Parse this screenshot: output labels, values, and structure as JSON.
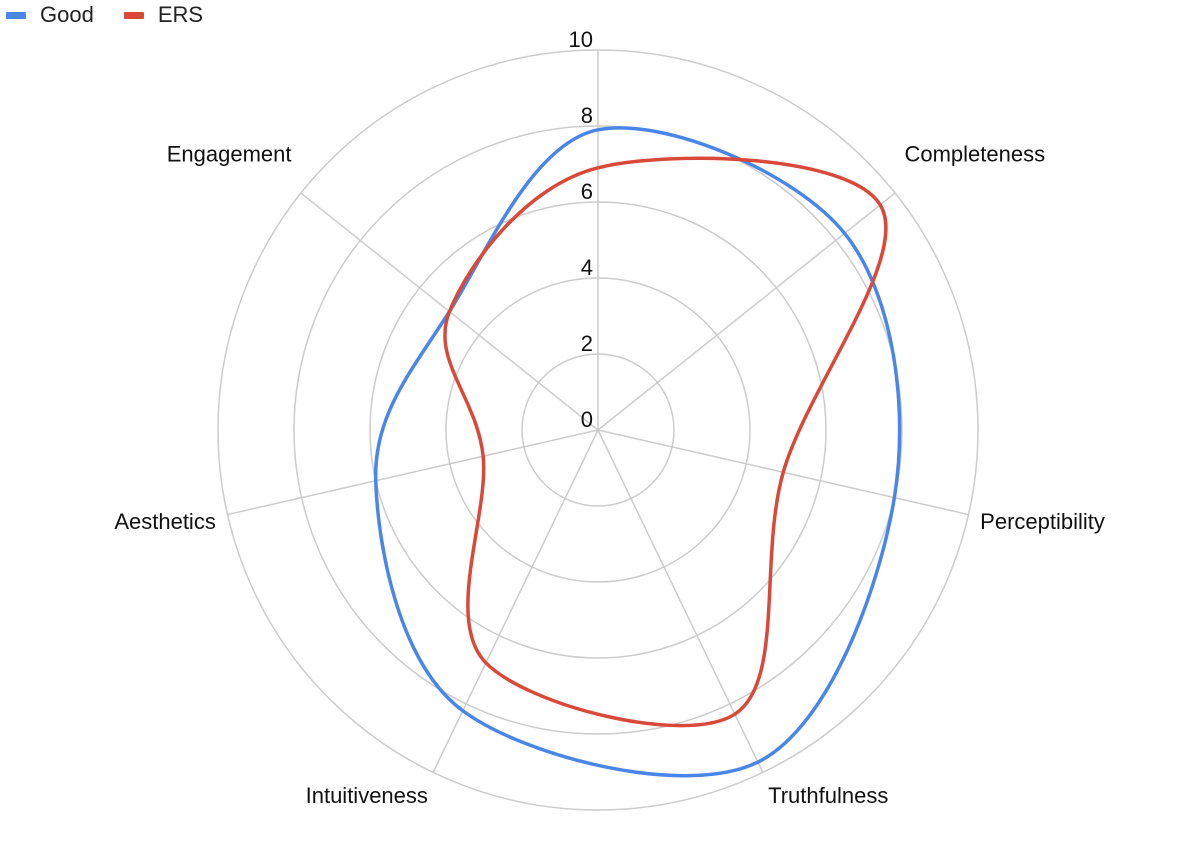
{
  "chart_data": {
    "type": "radar",
    "title": "",
    "categories": [
      "Completeness",
      "Perceptibility",
      "Truthfulness",
      "Intuitiveness",
      "Aesthetics",
      "Engagement"
    ],
    "radial_ticks": [
      "0",
      "2",
      "4",
      "6",
      "8",
      "10"
    ],
    "rlim": [
      0,
      10
    ],
    "grid": true,
    "legend_position": "top-left",
    "smooth": true,
    "series": [
      {
        "name": "Good",
        "color": "#4a86e8",
        "values": [
          8.3,
          8.0,
          9.7,
          8.2,
          6.0,
          5.0
        ],
        "start_value": 7.9
      },
      {
        "name": "ERS",
        "color": "#d9493a",
        "values": [
          9.5,
          5.0,
          8.3,
          6.8,
          3.1,
          5.0
        ],
        "start_value": 6.9
      }
    ]
  }
}
